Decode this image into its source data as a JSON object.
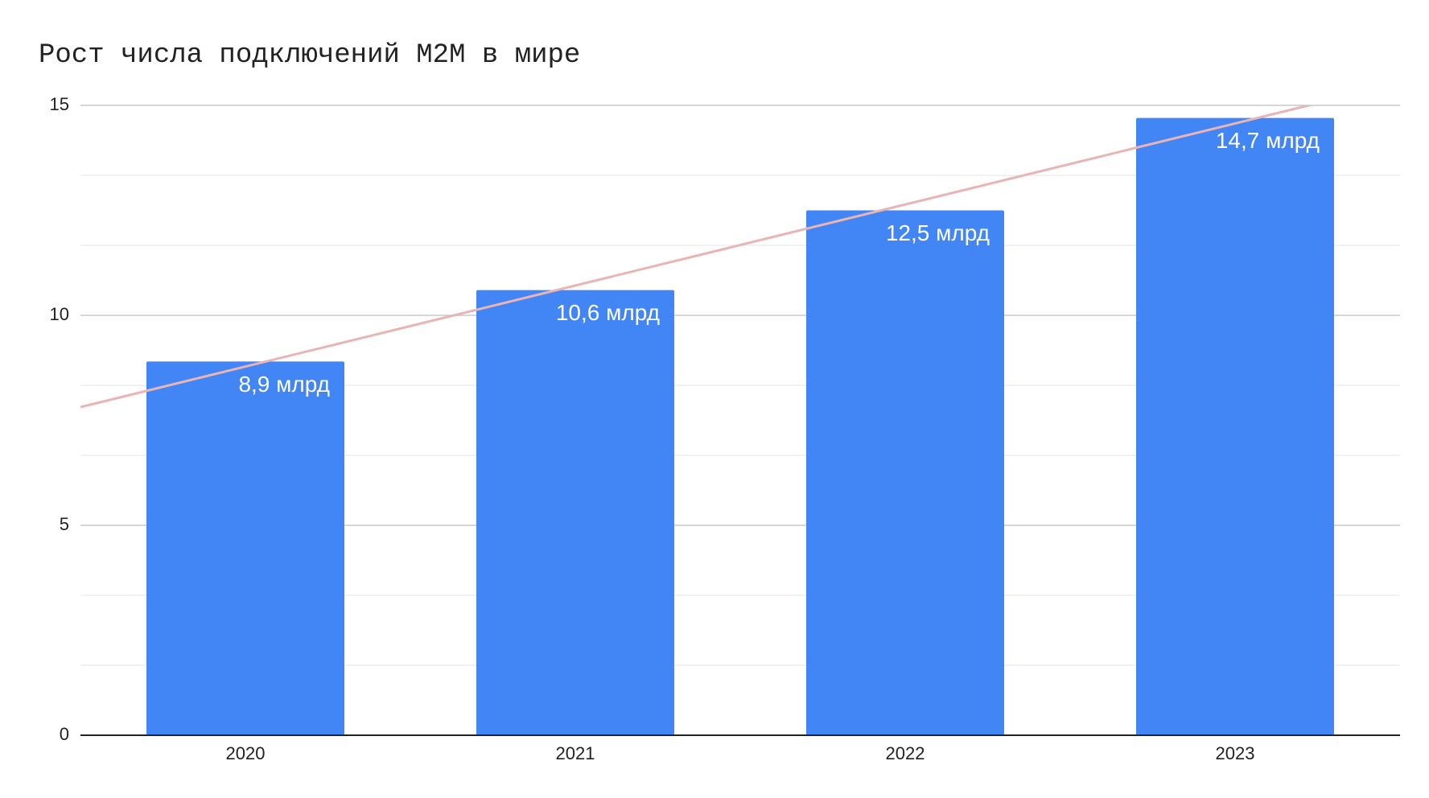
{
  "chart_data": {
    "type": "bar",
    "title": "Рост числа подключений M2M в мире",
    "categories": [
      "2020",
      "2021",
      "2022",
      "2023"
    ],
    "values": [
      8.9,
      10.6,
      12.5,
      14.7
    ],
    "value_labels": [
      "8,9 млрд",
      "10,6 млрд",
      "12,5 млрд",
      "14,7 млрд"
    ],
    "color": "#4285f4",
    "ylim": [
      0,
      15
    ],
    "yticks": [
      0,
      5,
      10,
      15
    ],
    "grid": true,
    "minor_gridlines": 2,
    "trendline": {
      "type": "linear",
      "color": "#e8b4b4"
    }
  }
}
